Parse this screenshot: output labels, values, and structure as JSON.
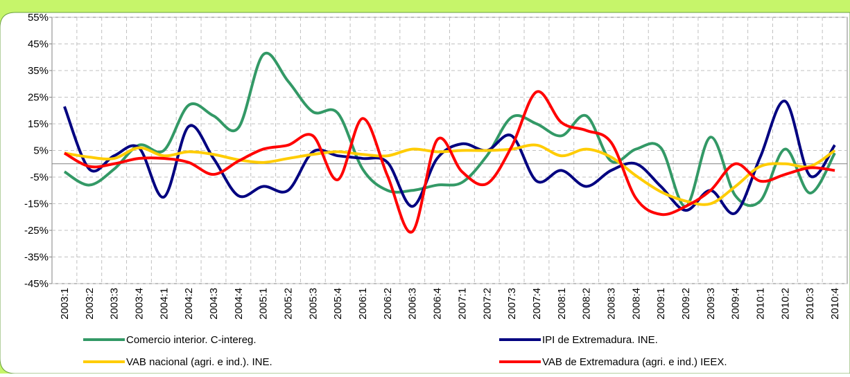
{
  "chart_data": {
    "type": "line",
    "categories": [
      "2003:1",
      "2003:2",
      "2003:3",
      "2003:4",
      "2004:1",
      "2004:2",
      "2004:3",
      "2004:4",
      "2005:1",
      "2005:2",
      "2005:3",
      "2005:4",
      "2006:1",
      "2006:2",
      "2006:3",
      "2006:4",
      "2007:1",
      "2007:2",
      "2007:3",
      "2007:4",
      "2008:1",
      "2008:2",
      "2008:3",
      "2008:4",
      "2009:1",
      "2009:2",
      "2009:3",
      "2009:4",
      "2010:1",
      "2010:2",
      "2010:3",
      "2010:4"
    ],
    "series": [
      {
        "name": "Comercio interior. C-intereg.",
        "color": "#339966",
        "values": [
          -3,
          -8,
          -2,
          7,
          5,
          22,
          18,
          13.5,
          41,
          31,
          19.5,
          19,
          -2,
          -10,
          -10,
          -8,
          -7,
          3,
          17.5,
          15,
          10.5,
          18,
          1,
          5.5,
          6,
          -16,
          10,
          -12,
          -14,
          5.5,
          -11,
          4
        ]
      },
      {
        "name": "IPI de Extremadura. INE.",
        "color": "#000080",
        "values": [
          21.5,
          -2,
          3,
          6,
          -12.5,
          14,
          2,
          -12,
          -8.5,
          -10,
          4.5,
          3,
          2,
          0.5,
          -16,
          2,
          7.5,
          5,
          10.5,
          -6.5,
          -2.5,
          -8.5,
          -2.5,
          0,
          -8.5,
          -17.5,
          -10,
          -18.5,
          2.5,
          23.5,
          -4.5,
          7
        ]
      },
      {
        "name": "VAB nacional (agri. e ind.). INE.",
        "color": "#ffcc00",
        "values": [
          4,
          2.5,
          2,
          6,
          3,
          4.5,
          3.5,
          1.5,
          0.5,
          2,
          3.5,
          4.5,
          3.5,
          3,
          5.5,
          4.5,
          5,
          5,
          5.5,
          7,
          3,
          5.5,
          2.5,
          -4.5,
          -10.5,
          -14,
          -15,
          -8.5,
          -1,
          0,
          -1,
          5
        ]
      },
      {
        "name": "VAB de Extremadura (agri. e ind.) IEEX.",
        "color": "#ff0000",
        "values": [
          4,
          -1,
          0,
          2,
          2,
          0.5,
          -4,
          1,
          5.5,
          7,
          10.5,
          -6,
          17,
          -4.5,
          -25.5,
          9,
          -3,
          -7.5,
          6.5,
          27,
          15.5,
          12.5,
          8,
          -13,
          -19,
          -16,
          -10,
          0,
          -6.5,
          -4,
          -1.5,
          -2.5
        ]
      }
    ],
    "ylim": [
      -45,
      55
    ],
    "yticks": [
      {
        "value": -45,
        "label": "-45%"
      },
      {
        "value": -35,
        "label": "-35%"
      },
      {
        "value": -25,
        "label": "-25%"
      },
      {
        "value": -15,
        "label": "-15%"
      },
      {
        "value": -5,
        "label": "-5%"
      },
      {
        "value": 5,
        "label": "5%"
      },
      {
        "value": 15,
        "label": "15%"
      },
      {
        "value": 25,
        "label": "25%"
      },
      {
        "value": 35,
        "label": "35%"
      },
      {
        "value": 45,
        "label": "45%"
      },
      {
        "value": 55,
        "label": "55%"
      }
    ],
    "grid": true
  }
}
